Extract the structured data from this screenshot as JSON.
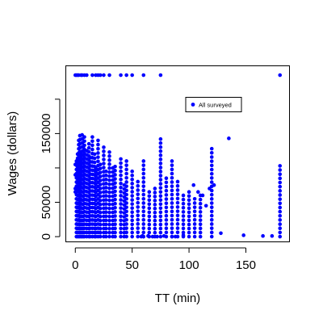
{
  "chart_data": {
    "type": "scatter",
    "title": "",
    "xlabel": "TT (min)",
    "ylabel": "Wages (dollars)",
    "xlim": [
      -8,
      188
    ],
    "ylim": [
      -7000,
      248000
    ],
    "xticks": [
      0,
      50,
      100,
      150
    ],
    "xtick_labels": [
      "0",
      "50",
      "100",
      "150"
    ],
    "yticks": [
      0,
      50000,
      100000,
      150000,
      200000
    ],
    "ytick_labels": [
      "0",
      "50000",
      "",
      "150000",
      ""
    ],
    "grid": false,
    "legend": {
      "position": "top-right",
      "entries": [
        "All surveyed"
      ]
    },
    "colors": {
      "points": "#0000ff",
      "axis": "#000000"
    },
    "topcoded_value": 235000,
    "topcoded_x": [
      0,
      1,
      2,
      3,
      5,
      6,
      8,
      10,
      15,
      18,
      20,
      22,
      25,
      30,
      40,
      45,
      50,
      60,
      75,
      180
    ],
    "column_x": [
      1,
      2,
      3,
      4,
      5,
      6,
      7,
      8,
      10,
      12,
      13,
      15,
      17,
      18,
      20,
      22,
      25,
      27,
      30,
      33,
      35,
      40,
      43,
      45,
      50,
      55,
      60,
      65,
      70,
      75,
      80,
      85,
      90,
      95,
      100,
      105,
      110,
      120,
      180
    ],
    "column_top_y": [
      110000,
      120000,
      140000,
      147000,
      120000,
      148000,
      130000,
      145000,
      125000,
      135000,
      115000,
      145000,
      120000,
      100000,
      140000,
      105000,
      130000,
      95000,
      123000,
      100000,
      102000,
      113000,
      75000,
      110000,
      95000,
      80000,
      110000,
      65000,
      70000,
      142000,
      85000,
      110000,
      80000,
      60000,
      65000,
      55000,
      60000,
      128000,
      103000
    ],
    "points": [
      [
        0,
        70000
      ],
      [
        0,
        90000
      ],
      [
        0,
        105000
      ],
      [
        0,
        65000
      ],
      [
        58,
        0
      ],
      [
        59,
        1000
      ],
      [
        60,
        0
      ],
      [
        64,
        1000
      ],
      [
        68,
        0
      ],
      [
        72,
        0
      ],
      [
        78,
        1000
      ],
      [
        85,
        0
      ],
      [
        88,
        0
      ],
      [
        95,
        2000
      ],
      [
        104,
        75000
      ],
      [
        108,
        65000
      ],
      [
        112,
        60000
      ],
      [
        115,
        45000
      ],
      [
        118,
        70000
      ],
      [
        122,
        75000
      ],
      [
        128,
        5000
      ],
      [
        135,
        143000
      ],
      [
        148,
        2000
      ],
      [
        165,
        1000
      ],
      [
        173,
        1000
      ]
    ]
  }
}
